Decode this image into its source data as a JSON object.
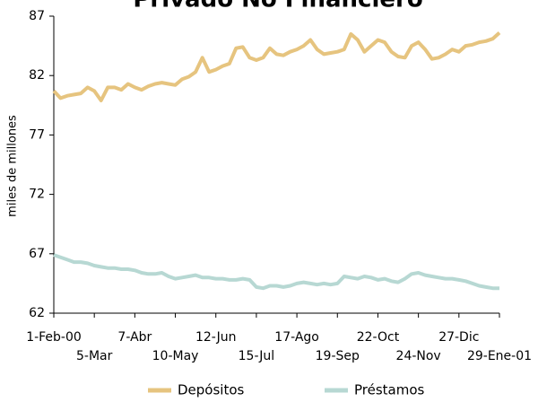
{
  "chart_data": {
    "type": "line",
    "title": "Privado No Financiero",
    "y_label": "miles de millones",
    "categories": [
      "1-Feb-00",
      null,
      null,
      null,
      null,
      null,
      "5-Mar",
      null,
      null,
      null,
      null,
      null,
      "7-Abr",
      null,
      null,
      null,
      null,
      null,
      "10-May",
      null,
      null,
      null,
      null,
      null,
      "12-Jun",
      null,
      null,
      null,
      null,
      null,
      "15-Jul",
      null,
      null,
      null,
      null,
      null,
      "17-Ago",
      null,
      null,
      null,
      null,
      null,
      "19-Sep",
      null,
      null,
      null,
      null,
      null,
      "22-Oct",
      null,
      null,
      null,
      null,
      null,
      "24-Nov",
      null,
      null,
      null,
      null,
      null,
      "27-Dic",
      null,
      null,
      null,
      null,
      null,
      "29-Ene-01"
    ],
    "series": [
      {
        "name": "Depósitos",
        "color": "#e6c47f",
        "values": [
          80.7,
          80.1,
          80.3,
          80.4,
          80.5,
          81.0,
          80.7,
          79.9,
          81.0,
          81.0,
          80.8,
          81.3,
          81.0,
          80.8,
          81.1,
          81.3,
          81.4,
          81.3,
          81.2,
          81.7,
          81.9,
          82.3,
          83.5,
          82.3,
          82.5,
          82.8,
          83.0,
          84.3,
          84.4,
          83.5,
          83.3,
          83.5,
          84.3,
          83.8,
          83.7,
          84.0,
          84.2,
          84.5,
          85.0,
          84.2,
          83.8,
          83.9,
          84.0,
          84.2,
          85.5,
          85.0,
          84.0,
          84.5,
          85.0,
          84.8,
          84.0,
          83.6,
          83.5,
          84.5,
          84.8,
          84.2,
          83.4,
          83.5,
          83.8,
          84.2,
          84.0,
          84.5,
          84.6,
          84.8,
          84.9,
          85.1,
          85.6
        ]
      },
      {
        "name": "Préstamos",
        "color": "#b7d8d3",
        "values": [
          66.9,
          66.7,
          66.5,
          66.3,
          66.3,
          66.2,
          66.0,
          65.9,
          65.8,
          65.8,
          65.7,
          65.7,
          65.6,
          65.4,
          65.3,
          65.3,
          65.4,
          65.1,
          64.9,
          65.0,
          65.1,
          65.2,
          65.0,
          65.0,
          64.9,
          64.9,
          64.8,
          64.8,
          64.9,
          64.8,
          64.2,
          64.1,
          64.3,
          64.3,
          64.2,
          64.3,
          64.5,
          64.6,
          64.5,
          64.4,
          64.5,
          64.4,
          64.5,
          65.1,
          65.0,
          64.9,
          65.1,
          65.0,
          64.8,
          64.9,
          64.7,
          64.6,
          64.9,
          65.3,
          65.4,
          65.2,
          65.1,
          65.0,
          64.9,
          64.9,
          64.8,
          64.7,
          64.5,
          64.3,
          64.2,
          64.1,
          64.1
        ]
      }
    ],
    "ylim": [
      62,
      87
    ],
    "yticks": [
      62,
      67,
      72,
      77,
      82,
      87
    ],
    "grid": false,
    "legend": "bottom"
  }
}
